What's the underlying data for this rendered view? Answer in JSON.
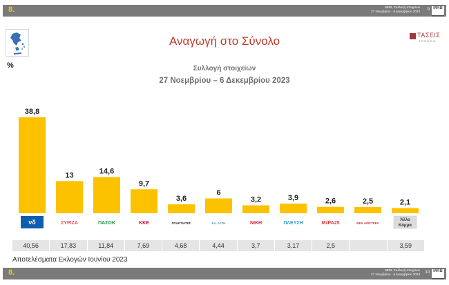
{
  "header": {
    "page_label": "8.",
    "info_line1": "MRB, Συλλογή στοιχείων",
    "info_line2": "27 Νοεμβρίου - 6 Δεκεμβρίου 2023",
    "slide_number": "9",
    "logo_text": "MRB"
  },
  "footer": {
    "page_label": "8.",
    "info_line1": "MRB, Συλλογή στοιχείων",
    "info_line2": "27 Νοεμβρίου - 6 Δεκεμβρίου 2023",
    "slide_number": "10",
    "logo_text": "MRB"
  },
  "brand": {
    "name": "ΤΑΣΕΙΣ",
    "sub": "TRENDS"
  },
  "percent_label": "%",
  "chart_data": {
    "type": "bar",
    "title": "Αναγωγή στο Σύνολο",
    "subtitle": "Συλλογή στοιχείων",
    "date_range": "27 Νοεμβρίου – 6 Δεκεμβρίου  2023",
    "ylabel": "%",
    "ylim": [
      0,
      40
    ],
    "categories": [
      "ΝΔ",
      "ΣΥΡΙΖΑ",
      "ΠΑΣΟΚ",
      "ΚΚΕ",
      "ΣΠΑΡΤΙΑΤΕΣ",
      "ΕΛΛΗΝΙΚΗ ΛΥΣΗ",
      "ΝΙΚΗ",
      "ΠΛΕΥΣΗ ΕΛΕΥΘΕΡΙΑΣ",
      "ΜέΡΑ25",
      "ΝΕΑ ΑΡΙΣΤΕΡΑ",
      "Άλλο Κόμμα"
    ],
    "values": [
      38.8,
      13,
      14.6,
      9.7,
      3.6,
      6,
      3.2,
      3.9,
      2.6,
      2.5,
      2.1
    ],
    "value_labels": [
      "38,8",
      "13",
      "14,6",
      "9,7",
      "3,6",
      "6",
      "3,2",
      "3,9",
      "2,6",
      "2,5",
      "2,1"
    ],
    "bar_color": "#fcc200",
    "party_colors": [
      "#0d5eaf",
      "#e8505b",
      "#1a9e3e",
      "#c8102e",
      "#2b2b2b",
      "#5b8fc9",
      "#d7263d",
      "#2b9ed6",
      "#e03a3e",
      "#d32f2f",
      "#dcdcdc"
    ],
    "logo_texts": [
      "νδ",
      "ΣΥΡΙΖΑ",
      "ΠΑΣΟΚ",
      "ΚΚΕ",
      "ΣΠΑΡΤΙΑΤΕΣ",
      "ΕΛ. ΛΥΣΗ",
      "ΝΙΚΗ",
      "ΠΛΕΥΣΗ",
      "ΜέΡΑ25",
      "ΝΕΑ ΑΡΙΣΤΕΡΑ",
      "Άλλο Κόμμα"
    ],
    "previous_results": [
      "40,56",
      "17,83",
      "11,84",
      "7,69",
      "4,68",
      "4,44",
      "3,7",
      "3,17",
      "2,5",
      "",
      "3,59"
    ],
    "previous_results_label": "Αποτελέσματα Εκλογών Ιουνίου 2023"
  }
}
